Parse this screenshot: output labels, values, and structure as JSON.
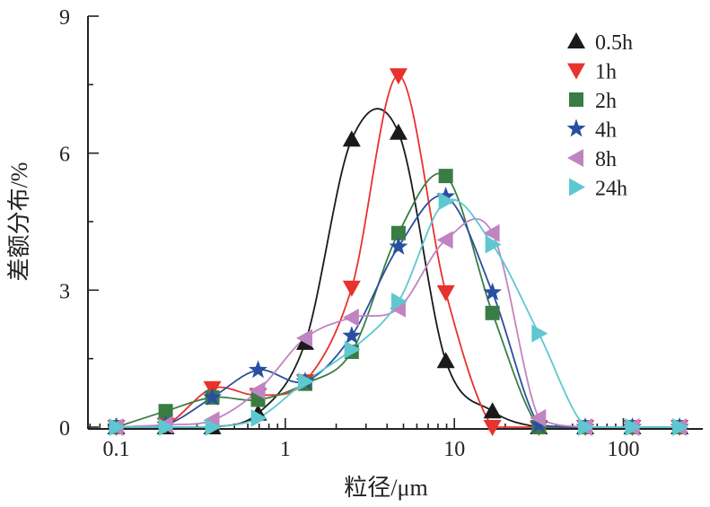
{
  "chart_data": {
    "type": "line",
    "title": "",
    "xlabel": "粒径/μm",
    "ylabel": "差额分布/%",
    "xscale": "log",
    "xlim": [
      0.068,
      295
    ],
    "ylim": [
      0,
      9
    ],
    "xticks": [
      0.1,
      1,
      10,
      100
    ],
    "xtick_labels": [
      "0.1",
      "1",
      "10",
      "100"
    ],
    "yticks": [
      0,
      3,
      6,
      9
    ],
    "ytick_labels": [
      "0",
      "3",
      "6",
      "9"
    ],
    "grid": false,
    "legend_position": "top-right",
    "x": [
      0.1,
      0.196,
      0.37,
      0.69,
      1.31,
      2.47,
      4.67,
      8.9,
      16.8,
      31.6,
      59.5,
      113,
      215
    ],
    "series": [
      {
        "name": "0.5h",
        "color": "#1a1a1a",
        "marker": "triangle-up",
        "values": [
          0,
          0,
          0,
          0.3,
          1.85,
          6.3,
          6.45,
          1.45,
          0.35,
          0,
          0,
          0,
          0
        ]
      },
      {
        "name": "1h",
        "color": "#e8322d",
        "marker": "triangle-down",
        "values": [
          0,
          0.05,
          0.85,
          0.7,
          1.0,
          3.05,
          7.7,
          2.95,
          0,
          0,
          0,
          0,
          0
        ]
      },
      {
        "name": "2h",
        "color": "#3a7d44",
        "marker": "square",
        "values": [
          0,
          0.35,
          0.65,
          0.6,
          0.95,
          1.65,
          4.25,
          5.5,
          2.5,
          0,
          0,
          0,
          0
        ]
      },
      {
        "name": "4h",
        "color": "#2a4fa0",
        "marker": "star",
        "values": [
          0,
          0.05,
          0.65,
          1.25,
          1.0,
          2.0,
          3.95,
          5.05,
          2.95,
          0.05,
          0,
          0,
          0
        ]
      },
      {
        "name": "8h",
        "color": "#c084c0",
        "marker": "triangle-left",
        "values": [
          0,
          0.05,
          0.15,
          0.8,
          1.95,
          2.4,
          2.6,
          4.1,
          4.25,
          0.2,
          0,
          0,
          0
        ]
      },
      {
        "name": "24h",
        "color": "#5ec8d0",
        "marker": "triangle-right",
        "values": [
          0,
          0,
          0,
          0.2,
          1.0,
          1.7,
          2.75,
          4.95,
          4.0,
          2.05,
          0,
          0,
          0
        ]
      }
    ]
  }
}
